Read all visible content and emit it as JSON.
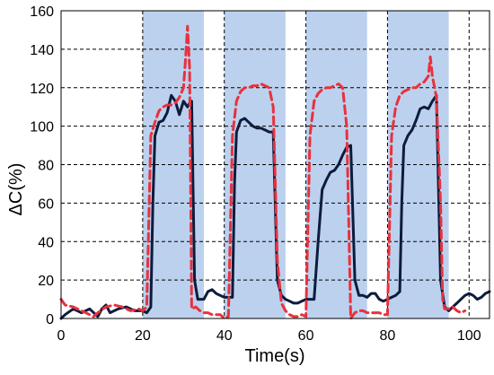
{
  "chart_data": {
    "type": "line",
    "xlabel": "Time(s)",
    "ylabel": "ΔC(%)",
    "xlim": [
      0,
      105
    ],
    "ylim": [
      0,
      160
    ],
    "x_ticks": [
      0,
      20,
      40,
      60,
      80,
      100
    ],
    "y_ticks": [
      0,
      20,
      40,
      60,
      80,
      100,
      120,
      140,
      160
    ],
    "grid": "dashed, major ticks",
    "legend": "none",
    "shaded_intervals": [
      [
        20,
        35
      ],
      [
        40,
        55
      ],
      [
        60,
        75
      ],
      [
        80,
        95
      ]
    ],
    "colors": {
      "shading": "#bcd1ee",
      "series_solid": "#0d1b3d",
      "series_dashed": "#e8323c",
      "grid": "#000000",
      "axis": "#000000"
    },
    "series": [
      {
        "style": "solid",
        "points": [
          [
            0,
            0
          ],
          [
            1,
            2
          ],
          [
            3,
            5
          ],
          [
            5,
            3
          ],
          [
            7,
            5
          ],
          [
            9,
            1
          ],
          [
            10,
            5
          ],
          [
            11,
            7
          ],
          [
            12,
            3
          ],
          [
            14,
            5
          ],
          [
            16,
            6
          ],
          [
            18,
            4
          ],
          [
            20,
            4
          ],
          [
            21,
            3
          ],
          [
            22,
            6
          ],
          [
            22.5,
            60
          ],
          [
            23,
            95
          ],
          [
            24,
            102
          ],
          [
            25,
            103
          ],
          [
            26,
            107
          ],
          [
            27,
            116
          ],
          [
            28,
            113
          ],
          [
            29,
            106
          ],
          [
            30,
            113
          ],
          [
            31,
            110
          ],
          [
            31.5,
            112
          ],
          [
            32,
            113
          ],
          [
            32.7,
            20
          ],
          [
            33.5,
            10
          ],
          [
            34,
            10
          ],
          [
            35,
            10
          ],
          [
            36,
            14
          ],
          [
            37,
            15
          ],
          [
            38,
            13
          ],
          [
            39,
            12
          ],
          [
            40,
            11
          ],
          [
            41,
            11
          ],
          [
            42,
            11
          ],
          [
            42.5,
            70
          ],
          [
            43,
            97
          ],
          [
            44,
            103
          ],
          [
            45,
            104
          ],
          [
            46,
            102
          ],
          [
            47,
            100
          ],
          [
            48,
            99
          ],
          [
            49,
            99
          ],
          [
            50,
            98
          ],
          [
            51,
            97
          ],
          [
            52,
            97
          ],
          [
            53,
            20
          ],
          [
            54,
            12
          ],
          [
            55,
            10
          ],
          [
            56,
            9
          ],
          [
            57,
            8
          ],
          [
            58,
            8
          ],
          [
            59,
            9
          ],
          [
            60,
            10
          ],
          [
            61,
            10
          ],
          [
            62,
            10
          ],
          [
            63,
            40
          ],
          [
            64,
            67
          ],
          [
            65,
            72
          ],
          [
            66,
            76
          ],
          [
            67,
            77
          ],
          [
            68,
            80
          ],
          [
            69,
            85
          ],
          [
            70,
            89
          ],
          [
            71,
            90
          ],
          [
            72,
            20
          ],
          [
            73,
            12
          ],
          [
            74,
            12
          ],
          [
            75,
            11
          ],
          [
            76,
            13
          ],
          [
            77,
            13
          ],
          [
            78,
            10
          ],
          [
            79,
            9
          ],
          [
            80,
            10
          ],
          [
            81,
            11
          ],
          [
            82,
            12
          ],
          [
            83,
            14
          ],
          [
            83.5,
            60
          ],
          [
            84,
            90
          ],
          [
            85,
            95
          ],
          [
            86,
            98
          ],
          [
            87,
            103
          ],
          [
            88,
            109
          ],
          [
            89,
            110
          ],
          [
            90,
            109
          ],
          [
            91,
            113
          ],
          [
            92,
            116
          ],
          [
            93,
            20
          ],
          [
            94,
            6
          ],
          [
            95,
            4
          ],
          [
            96,
            6
          ],
          [
            97,
            8
          ],
          [
            98,
            10
          ],
          [
            99,
            12
          ],
          [
            100,
            13
          ],
          [
            101,
            12
          ],
          [
            102,
            10
          ],
          [
            103,
            11
          ],
          [
            104,
            13
          ],
          [
            105,
            14
          ]
        ]
      },
      {
        "style": "dashed",
        "points": [
          [
            0,
            10
          ],
          [
            1,
            7
          ],
          [
            3,
            6
          ],
          [
            5,
            4
          ],
          [
            7,
            2
          ],
          [
            8,
            1
          ],
          [
            9,
            3
          ],
          [
            11,
            6
          ],
          [
            13,
            7
          ],
          [
            15,
            6
          ],
          [
            17,
            4
          ],
          [
            19,
            5
          ],
          [
            20,
            4
          ],
          [
            21,
            6
          ],
          [
            22,
            95
          ],
          [
            23,
            102
          ],
          [
            24,
            108
          ],
          [
            25,
            110
          ],
          [
            26,
            111
          ],
          [
            27,
            111
          ],
          [
            28,
            112
          ],
          [
            29,
            115
          ],
          [
            30,
            120
          ],
          [
            30.5,
            135
          ],
          [
            31,
            152
          ],
          [
            31.5,
            130
          ],
          [
            32,
            5
          ],
          [
            33,
            6
          ],
          [
            34,
            4
          ],
          [
            35,
            3
          ],
          [
            36,
            3
          ],
          [
            37,
            2
          ],
          [
            38,
            2
          ],
          [
            39,
            2
          ],
          [
            40,
            0
          ],
          [
            41,
            1
          ],
          [
            42,
            95
          ],
          [
            43,
            113
          ],
          [
            44,
            118
          ],
          [
            45,
            120
          ],
          [
            46,
            120
          ],
          [
            47,
            121
          ],
          [
            48,
            121
          ],
          [
            49,
            122
          ],
          [
            50,
            121
          ],
          [
            51,
            120
          ],
          [
            52,
            110
          ],
          [
            53,
            30
          ],
          [
            54,
            8
          ],
          [
            55,
            4
          ],
          [
            56,
            2
          ],
          [
            57,
            1
          ],
          [
            58,
            1
          ],
          [
            59,
            2
          ],
          [
            60,
            1
          ],
          [
            61,
            95
          ],
          [
            62,
            113
          ],
          [
            63,
            117
          ],
          [
            64,
            119
          ],
          [
            65,
            120
          ],
          [
            66,
            120
          ],
          [
            67,
            121
          ],
          [
            68,
            122
          ],
          [
            69,
            120
          ],
          [
            70,
            100
          ],
          [
            70.5,
            50
          ],
          [
            71,
            0
          ],
          [
            72,
            3
          ],
          [
            73,
            4
          ],
          [
            74,
            4
          ],
          [
            75,
            3
          ],
          [
            76,
            3
          ],
          [
            77,
            3
          ],
          [
            78,
            3
          ],
          [
            79,
            2
          ],
          [
            80,
            2
          ],
          [
            81,
            95
          ],
          [
            82,
            110
          ],
          [
            83,
            116
          ],
          [
            84,
            118
          ],
          [
            85,
            119
          ],
          [
            86,
            120
          ],
          [
            87,
            120
          ],
          [
            88,
            122
          ],
          [
            89,
            123
          ],
          [
            90,
            126
          ],
          [
            90.5,
            136
          ],
          [
            91,
            126
          ],
          [
            92,
            115
          ],
          [
            93,
            60
          ],
          [
            93.5,
            10
          ],
          [
            94,
            5
          ],
          [
            95,
            5
          ],
          [
            96,
            6
          ],
          [
            97,
            4
          ],
          [
            98,
            3
          ],
          [
            99,
            4
          ]
        ]
      }
    ]
  }
}
